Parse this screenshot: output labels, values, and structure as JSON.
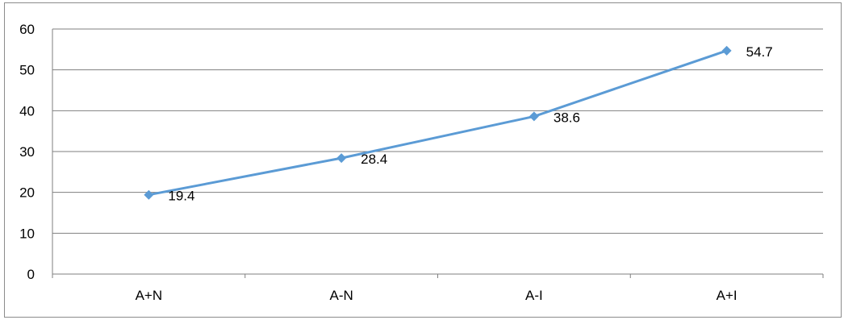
{
  "chart_data": {
    "type": "line",
    "categories": [
      "A+N",
      "A-N",
      "A-I",
      "A+I"
    ],
    "values": [
      19.4,
      28.4,
      38.6,
      54.7
    ],
    "data_labels": [
      "19.4",
      "28.4",
      "38.6",
      "54.7"
    ],
    "title": "",
    "xlabel": "",
    "ylabel": "",
    "ylim": [
      0,
      60
    ],
    "yticks": [
      0,
      10,
      20,
      30,
      40,
      50,
      60
    ],
    "ytick_labels": [
      "0",
      "10",
      "20",
      "30",
      "40",
      "50",
      "60"
    ],
    "grid": true,
    "legend": "none",
    "marker": "diamond",
    "colors": {
      "series_line": "#5b9bd5",
      "gridline": "#7f7f7f",
      "axis": "#7f7f7f",
      "frame": "#8c8c8c"
    }
  }
}
